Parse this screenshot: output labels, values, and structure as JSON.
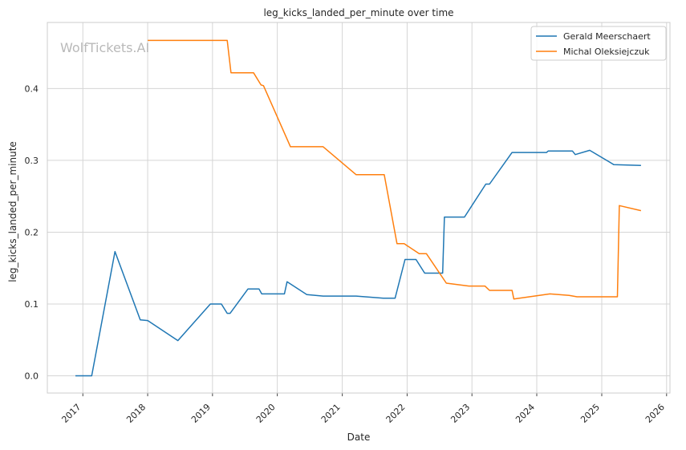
{
  "chart_data": {
    "type": "line",
    "title": "leg_kicks_landed_per_minute over time",
    "xlabel": "Date",
    "ylabel": "leg_kicks_landed_per_minute",
    "watermark": "WolfTickets.AI",
    "x_type": "date",
    "xlim": [
      "2016-06-15",
      "2026-01-20"
    ],
    "ylim": [
      -0.024,
      0.492
    ],
    "x_ticks": [
      "2017",
      "2018",
      "2019",
      "2020",
      "2021",
      "2022",
      "2023",
      "2024",
      "2025",
      "2026"
    ],
    "y_ticks": [
      "0.0",
      "0.1",
      "0.2",
      "0.3",
      "0.4"
    ],
    "grid": true,
    "legend_position": "top-right",
    "series": [
      {
        "name": "Gerald Meerschaert",
        "color": "#1f77b4",
        "points": [
          [
            "2016-11-20",
            0.0
          ],
          [
            "2017-02-20",
            0.0
          ],
          [
            "2017-07-01",
            0.173
          ],
          [
            "2017-11-20",
            0.078
          ],
          [
            "2018-01-01",
            0.077
          ],
          [
            "2018-06-20",
            0.049
          ],
          [
            "2018-12-20",
            0.1
          ],
          [
            "2019-02-20",
            0.1
          ],
          [
            "2019-03-25",
            0.087
          ],
          [
            "2019-04-10",
            0.087
          ],
          [
            "2019-07-20",
            0.121
          ],
          [
            "2019-09-20",
            0.121
          ],
          [
            "2019-10-05",
            0.114
          ],
          [
            "2020-02-10",
            0.114
          ],
          [
            "2020-02-25",
            0.131
          ],
          [
            "2020-06-15",
            0.113
          ],
          [
            "2020-09-15",
            0.111
          ],
          [
            "2021-03-20",
            0.111
          ],
          [
            "2021-08-20",
            0.108
          ],
          [
            "2021-10-25",
            0.108
          ],
          [
            "2021-12-20",
            0.162
          ],
          [
            "2022-02-20",
            0.162
          ],
          [
            "2022-04-10",
            0.143
          ],
          [
            "2022-07-20",
            0.143
          ],
          [
            "2022-07-30",
            0.221
          ],
          [
            "2022-11-20",
            0.221
          ],
          [
            "2023-03-20",
            0.267
          ],
          [
            "2023-04-10",
            0.267
          ],
          [
            "2023-08-15",
            0.311
          ],
          [
            "2024-02-25",
            0.311
          ],
          [
            "2024-03-05",
            0.313
          ],
          [
            "2024-07-20",
            0.313
          ],
          [
            "2024-08-05",
            0.308
          ],
          [
            "2024-10-25",
            0.314
          ],
          [
            "2025-03-10",
            0.294
          ],
          [
            "2025-08-10",
            0.293
          ]
        ]
      },
      {
        "name": "Michal Oleksiejczuk",
        "color": "#ff7f0e",
        "points": [
          [
            "2018-01-01",
            0.467
          ],
          [
            "2019-03-25",
            0.467
          ],
          [
            "2019-04-15",
            0.422
          ],
          [
            "2019-08-20",
            0.422
          ],
          [
            "2019-10-01",
            0.405
          ],
          [
            "2019-10-15",
            0.404
          ],
          [
            "2020-03-15",
            0.319
          ],
          [
            "2020-09-15",
            0.319
          ],
          [
            "2021-03-20",
            0.28
          ],
          [
            "2021-08-25",
            0.28
          ],
          [
            "2021-11-05",
            0.184
          ],
          [
            "2021-12-15",
            0.184
          ],
          [
            "2022-03-10",
            0.17
          ],
          [
            "2022-04-20",
            0.17
          ],
          [
            "2022-08-10",
            0.129
          ],
          [
            "2022-12-15",
            0.125
          ],
          [
            "2023-03-15",
            0.125
          ],
          [
            "2023-04-10",
            0.119
          ],
          [
            "2023-08-15",
            0.119
          ],
          [
            "2023-08-25",
            0.107
          ],
          [
            "2024-03-15",
            0.114
          ],
          [
            "2024-07-01",
            0.112
          ],
          [
            "2024-08-15",
            0.11
          ],
          [
            "2025-03-30",
            0.11
          ],
          [
            "2025-04-10",
            0.237
          ],
          [
            "2025-08-10",
            0.23
          ]
        ]
      }
    ]
  }
}
